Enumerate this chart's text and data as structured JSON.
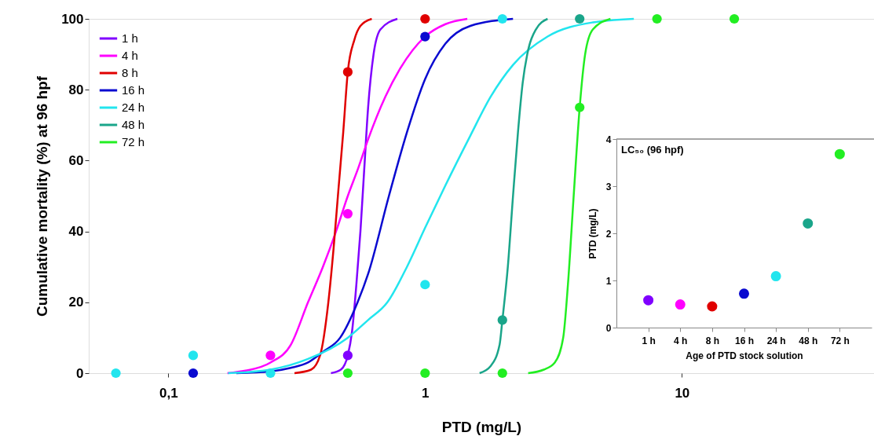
{
  "chart_data": [
    {
      "type": "line",
      "xlabel": "PTD (mg/L)",
      "ylabel": "Cumulative mortality (%) at 96 hpf",
      "log": "x",
      "xlim": [
        0.049,
        56
      ],
      "xticks": [
        {
          "value": 0.1,
          "label": "0,1"
        },
        1,
        10
      ],
      "ylim": [
        0,
        100
      ],
      "yticks": [
        0,
        20,
        40,
        60,
        80,
        100
      ],
      "legend": "top left",
      "series": [
        {
          "name": "1 h",
          "type": "line",
          "marker": "none",
          "color": "#8000ff",
          "x": [
            0.43,
            0.47,
            0.5,
            0.52,
            0.54,
            0.56,
            0.58,
            0.6,
            0.63,
            0.67,
            0.78
          ],
          "values": [
            0,
            1,
            5,
            12,
            25,
            40,
            58,
            75,
            90,
            97,
            100
          ]
        },
        {
          "name": "4 h",
          "type": "line",
          "marker": "none",
          "color": "#ff00ff",
          "x": [
            0.17,
            0.2,
            0.25,
            0.3,
            0.35,
            0.4,
            0.45,
            0.5,
            0.55,
            0.6,
            0.7,
            0.8,
            1,
            1.2,
            1.46
          ],
          "values": [
            0,
            0.7,
            3,
            8,
            20,
            30,
            40,
            50,
            58,
            66,
            78,
            86,
            95,
            98.5,
            100
          ]
        },
        {
          "name": "8 h",
          "type": "line",
          "marker": "none",
          "color": "#e00000",
          "x": [
            0.31,
            0.36,
            0.39,
            0.42,
            0.44,
            0.46,
            0.48,
            0.5,
            0.53,
            0.56,
            0.62
          ],
          "values": [
            0,
            1,
            5,
            20,
            35,
            52,
            68,
            85,
            94,
            98,
            100
          ]
        },
        {
          "name": "16 h",
          "type": "line",
          "marker": "none",
          "color": "#0a0ad0",
          "x": [
            0.184,
            0.25,
            0.3,
            0.35,
            0.4,
            0.467,
            0.546,
            0.6,
            0.723,
            0.85,
            1,
            1.2,
            1.5,
            2.2
          ],
          "values": [
            0,
            0.5,
            1.5,
            3,
            6,
            10,
            20,
            28,
            50,
            68,
            83,
            93,
            98,
            100
          ]
        },
        {
          "name": "24 h",
          "type": "line",
          "marker": "none",
          "color": "#22e5ee",
          "x": [
            0.171,
            0.25,
            0.35,
            0.5,
            0.6,
            0.713,
            0.85,
            1,
            1.2,
            1.5,
            1.8,
            2.2,
            3,
            4.5,
            6.5
          ],
          "values": [
            0,
            1,
            4,
            10,
            15,
            20,
            30,
            41,
            53,
            67,
            78,
            87,
            95,
            99,
            100
          ]
        },
        {
          "name": "48 h",
          "type": "line",
          "marker": "none",
          "color": "#1aa58a",
          "x": [
            1.63,
            1.8,
            1.95,
            2,
            2.1,
            2.2,
            2.3,
            2.4,
            2.5,
            2.7,
            3
          ],
          "values": [
            0,
            2,
            8,
            15,
            30,
            50,
            68,
            82,
            90,
            97,
            100
          ]
        },
        {
          "name": "72 h",
          "type": "line",
          "marker": "none",
          "color": "#22ee22",
          "x": [
            2.52,
            2.9,
            3.2,
            3.45,
            3.6,
            3.79,
            4,
            4.2,
            4.5,
            5.27
          ],
          "values": [
            0,
            1,
            3,
            10,
            25,
            50,
            75,
            90,
            97,
            100
          ]
        },
        {
          "type": "scatter",
          "marker": "circle",
          "color": "#8000ff",
          "x": [
            0.5
          ],
          "values": [
            5
          ]
        },
        {
          "type": "scatter",
          "marker": "circle",
          "color": "#ff00ff",
          "x": [
            0.25,
            0.5
          ],
          "values": [
            5,
            45
          ]
        },
        {
          "type": "scatter",
          "marker": "circle",
          "color": "#e00000",
          "x": [
            0.5,
            1
          ],
          "values": [
            85,
            100
          ]
        },
        {
          "type": "scatter",
          "marker": "circle",
          "color": "#0a0ad0",
          "x": [
            0.125,
            1
          ],
          "values": [
            0,
            95
          ]
        },
        {
          "type": "scatter",
          "marker": "circle",
          "color": "#22e5ee",
          "x": [
            0.0625,
            0.125,
            0.25,
            1,
            2
          ],
          "values": [
            0,
            5,
            0,
            25,
            100
          ]
        },
        {
          "type": "scatter",
          "marker": "circle",
          "color": "#1aa58a",
          "x": [
            2,
            4
          ],
          "values": [
            15,
            100
          ]
        },
        {
          "type": "scatter",
          "marker": "circle",
          "color": "#22ee22",
          "x": [
            0.5,
            1,
            2,
            4,
            8,
            16
          ],
          "values": [
            0,
            0,
            0,
            75,
            100,
            100
          ]
        }
      ]
    },
    {
      "type": "scatter",
      "title": "LC₅₀ (96 hpf)",
      "xlabel": "Age of PTD stock solution",
      "ylabel": "PTD (mg/L)",
      "ylim": [
        0,
        4
      ],
      "yticks": [
        0,
        1,
        2,
        3,
        4
      ],
      "marker": "circle",
      "categories": [
        "1 h",
        "4 h",
        "8 h",
        "16 h",
        "24 h",
        "48 h",
        "72 h"
      ],
      "values": [
        0.58,
        0.49,
        0.45,
        0.72,
        1.09,
        2.21,
        3.68
      ],
      "colors": [
        "#8000ff",
        "#ff00ff",
        "#e00000",
        "#0a0ad0",
        "#22e5ee",
        "#1aa58a",
        "#22ee22"
      ]
    }
  ]
}
